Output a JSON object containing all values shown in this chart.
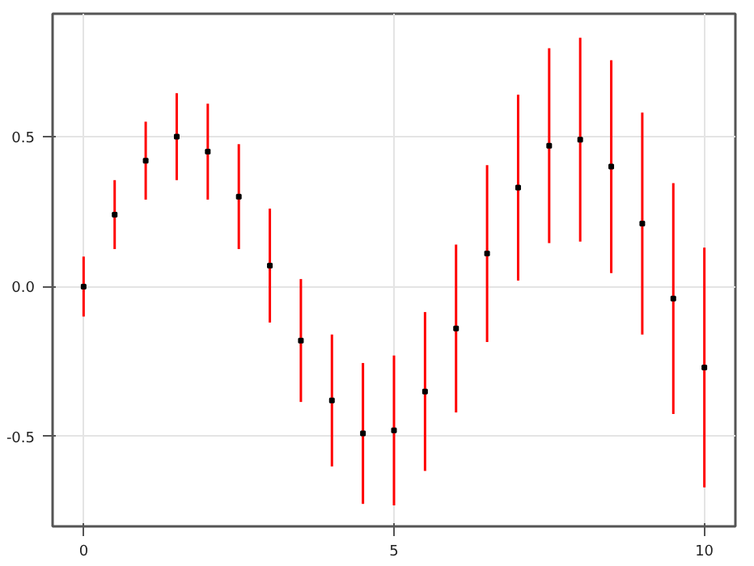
{
  "chart_data": {
    "type": "scatter",
    "x": [
      0,
      0.5,
      1,
      1.5,
      2,
      2.5,
      3,
      3.5,
      4,
      4.5,
      5,
      5.5,
      6,
      6.5,
      7,
      7.5,
      8,
      8.5,
      9,
      9.5,
      10
    ],
    "series": [
      {
        "color": "#000000",
        "values": [
          0.0,
          0.24,
          0.42,
          0.5,
          0.45,
          0.3,
          0.07,
          -0.18,
          -0.38,
          -0.49,
          -0.48,
          -0.35,
          -0.14,
          0.11,
          0.33,
          0.47,
          0.49,
          0.4,
          0.21,
          -0.04,
          -0.27
        ],
        "errors": [
          0.1,
          0.115,
          0.13,
          0.145,
          0.16,
          0.175,
          0.19,
          0.205,
          0.22,
          0.235,
          0.25,
          0.265,
          0.28,
          0.295,
          0.31,
          0.325,
          0.34,
          0.355,
          0.37,
          0.385,
          0.4
        ]
      }
    ],
    "xlim": [
      -0.5,
      10.5
    ],
    "ylim": [
      -0.8,
      0.91
    ],
    "xticks": [
      0,
      5,
      10
    ],
    "yticks": [
      -0.5,
      {
        "value": 0,
        "label": "0.0"
      },
      0.5
    ],
    "grid": true,
    "marker": "square"
  }
}
